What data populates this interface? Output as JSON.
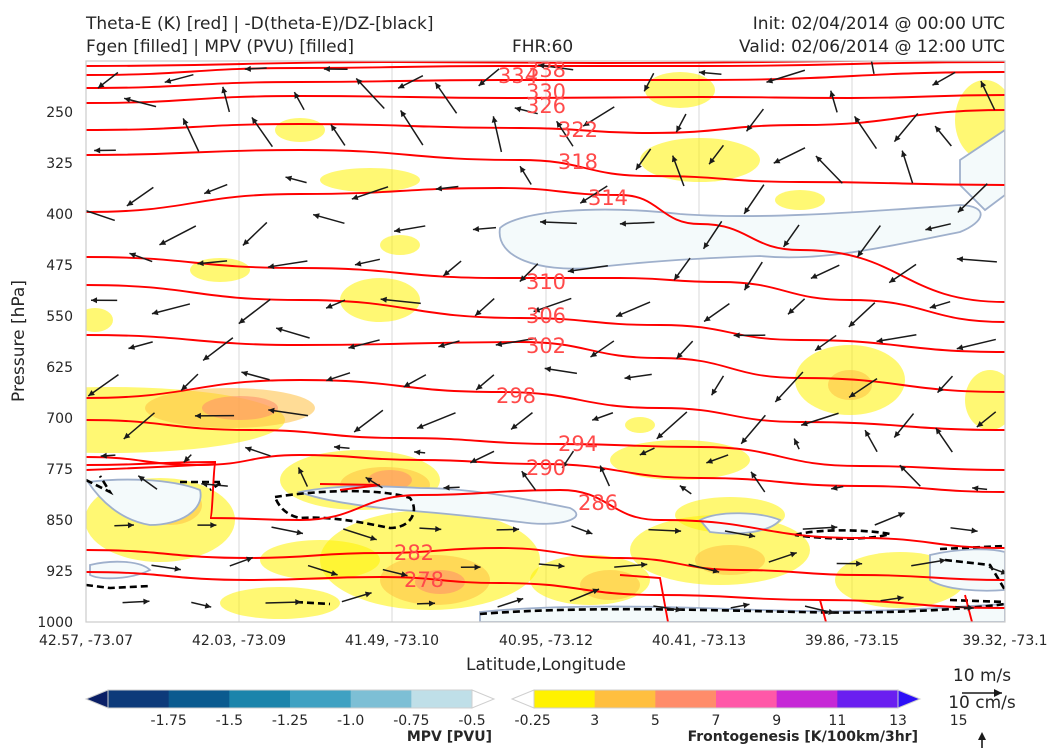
{
  "header": {
    "title_left_1": "Theta-E (K) [red] | -D(theta-E)/DZ-[black]",
    "title_left_2": "Fgen [filled] | MPV (PVU) [filled]",
    "fhr": "FHR:60",
    "init": "Init: 02/04/2014 @ 00:00 UTC",
    "valid": "Valid: 02/06/2014 @ 12:00 UTC"
  },
  "chart_data": {
    "type": "contour-cross-section",
    "xlabel": "Latitude,Longitude",
    "ylabel": "Pressure [hPa]",
    "x_ticks": [
      "42.57, -73.07",
      "42.03, -73.09",
      "41.49, -73.10",
      "40.95, -73.12",
      "40.41, -73.13",
      "39.86, -73.15",
      "39.32, -73.1"
    ],
    "y_ticks": [
      250,
      325,
      400,
      475,
      550,
      625,
      700,
      775,
      850,
      925,
      1000
    ],
    "ylim": [
      1000,
      175
    ],
    "y_inverted": true,
    "theta_e_contours": [
      {
        "value": 278,
        "label": "278"
      },
      {
        "value": 282,
        "label": "282"
      },
      {
        "value": 286,
        "label": "286"
      },
      {
        "value": 290,
        "label": "290"
      },
      {
        "value": 294,
        "label": "294"
      },
      {
        "value": 298,
        "label": "298"
      },
      {
        "value": 302,
        "label": "302"
      },
      {
        "value": 306,
        "label": "306"
      },
      {
        "value": 310,
        "label": "310"
      },
      {
        "value": 314,
        "label": "314"
      },
      {
        "value": 318,
        "label": "318"
      },
      {
        "value": 322,
        "label": "322"
      },
      {
        "value": 326,
        "label": "326"
      },
      {
        "value": 330,
        "label": "330"
      },
      {
        "value": 334,
        "label": "334"
      },
      {
        "value": 338,
        "label": "338"
      }
    ],
    "colors": {
      "theta_e": "#ff0000",
      "theta_e_label": "#ff4a4a",
      "dtheta_dz": "#000000",
      "mpv_outline": "#9fb0cc",
      "mpv_fill": "#f4fafb",
      "arrows": "#1a1a1a"
    },
    "mpv_colorbar": {
      "title": "MPV [PVU]",
      "labels": [
        "-1.75",
        "-1.5",
        "-1.25",
        "-1.0",
        "-0.75",
        "-0.5",
        "-0.25"
      ],
      "colors": [
        "#0a1f66",
        "#0d3a7a",
        "#0a5a8f",
        "#1b84ab",
        "#3fa1c2",
        "#7dbfd5",
        "#bfdfe8",
        "#ffffff"
      ]
    },
    "fgen_colorbar": {
      "title": "Frontogenesis [K/100km/3hr]",
      "labels": [
        "3",
        "5",
        "7",
        "9",
        "11",
        "13",
        "15"
      ],
      "colors": [
        "#ffffff",
        "#fff200",
        "#ffbf3f",
        "#ff8c6a",
        "#ff58a8",
        "#c628d6",
        "#6a1ff0",
        "#2d10f7"
      ]
    },
    "reference_vectors": {
      "horizontal": "10 m/s",
      "vertical": "10 cm/s"
    }
  }
}
